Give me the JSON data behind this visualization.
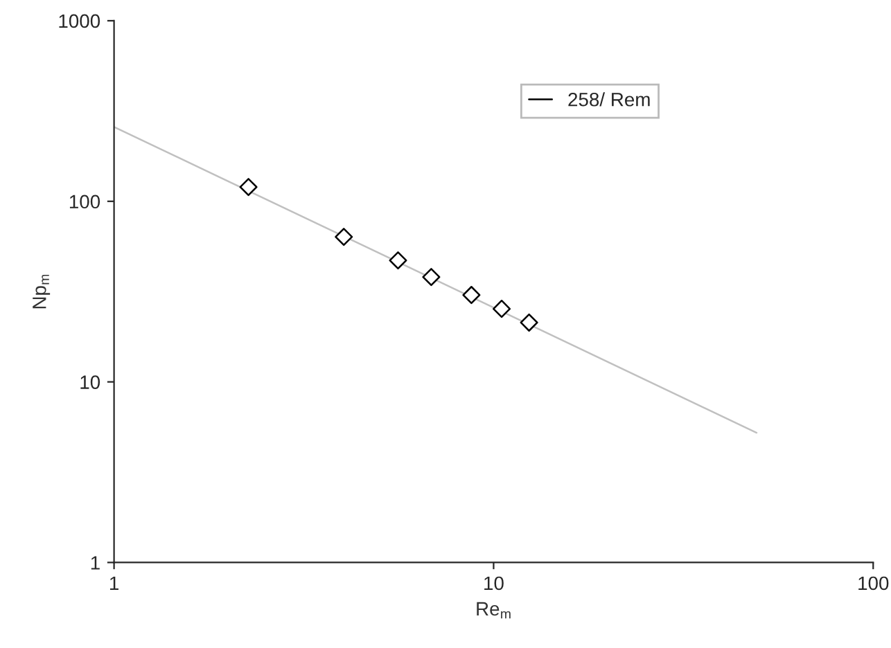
{
  "chart_data": {
    "type": "scatter",
    "xlabel": "Re$_{m}$",
    "ylabel": "Np$_{m}$",
    "xlim": [
      1,
      100
    ],
    "ylim": [
      1,
      1000
    ],
    "xticks": [
      1,
      10,
      100
    ],
    "yticks": [
      1,
      10,
      100,
      1000
    ],
    "log": "xy",
    "grid": false,
    "legend": "top right",
    "series": [
      {
        "color": "#000000",
        "marker": "diamond",
        "x": [
          2.26,
          4.03,
          5.6,
          6.85,
          8.74,
          10.5,
          12.4
        ],
        "values": [
          120,
          63.6,
          47.1,
          38.1,
          30.3,
          25.4,
          21.3
        ]
      },
      {
        "type": "line",
        "name": "258/ Rem",
        "color": "#c0c0c0",
        "marker": "none",
        "line_style": "solid",
        "x": [
          1,
          49.3
        ],
        "values": [
          258,
          5.23
        ]
      }
    ]
  }
}
